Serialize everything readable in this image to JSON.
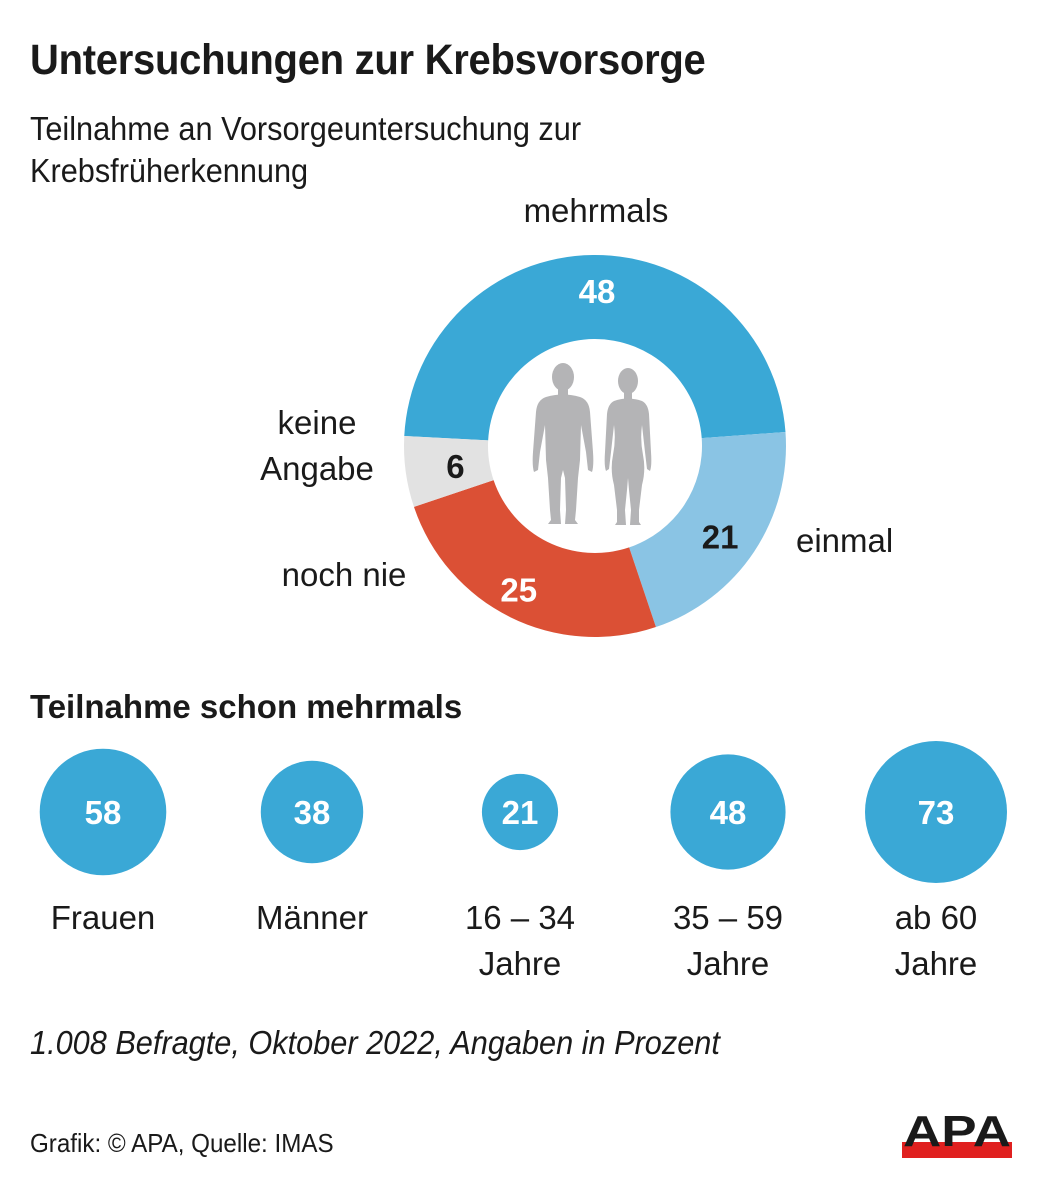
{
  "header": {
    "title": "Untersuchungen zur Krebsvorsorge",
    "subtitle_line1": "Teilnahme an Vorsorgeuntersuchung zur",
    "subtitle_line2": "Krebsfrüherkennung"
  },
  "chart_data": [
    {
      "type": "pie",
      "variant": "donut",
      "title": "Teilnahme an Vorsorgeuntersuchung zur Krebsfrüherkennung",
      "unit": "Prozent",
      "categories": [
        "mehrmals",
        "einmal",
        "noch nie",
        "keine Angabe"
      ],
      "values": [
        48,
        21,
        25,
        6
      ],
      "colors": [
        "#3aa8d6",
        "#8ac4e4",
        "#db5035",
        "#e2e2e2"
      ],
      "label_colors": [
        "#ffffff",
        "#1a1a1a",
        "#ffffff",
        "#1a1a1a"
      ],
      "center_icon": "male-female-silhouette-icon",
      "labels": {
        "mehrmals": "mehrmals",
        "einmal": "einmal",
        "noch_nie": "noch nie",
        "keine_line1": "keine",
        "keine_line2": "Angabe"
      },
      "value_labels": [
        "48",
        "21",
        "25",
        "6"
      ]
    },
    {
      "type": "bubble",
      "title": "Teilnahme schon mehrmals",
      "unit": "Prozent",
      "categories": [
        "Frauen",
        "Männer",
        "16 – 34 Jahre",
        "35 – 59 Jahre",
        "ab 60 Jahre"
      ],
      "category_lines": [
        [
          "Frauen"
        ],
        [
          "Männer"
        ],
        [
          "16 – 34",
          "Jahre"
        ],
        [
          "35 – 59",
          "Jahre"
        ],
        [
          "ab 60",
          "Jahre"
        ]
      ],
      "values": [
        58,
        38,
        21,
        48,
        73
      ],
      "value_labels": [
        "58",
        "38",
        "21",
        "48",
        "73"
      ],
      "color": "#3aa8d6"
    }
  ],
  "section": {
    "title": "Teilnahme schon mehrmals"
  },
  "footer": {
    "note": "1.008 Befragte, Oktober 2022, Angaben in Prozent",
    "credit": "Grafik: © APA, Quelle: IMAS",
    "logo_text": "APA",
    "logo_colors": {
      "text": "#1a1a1a",
      "bar": "#e0201f"
    }
  }
}
